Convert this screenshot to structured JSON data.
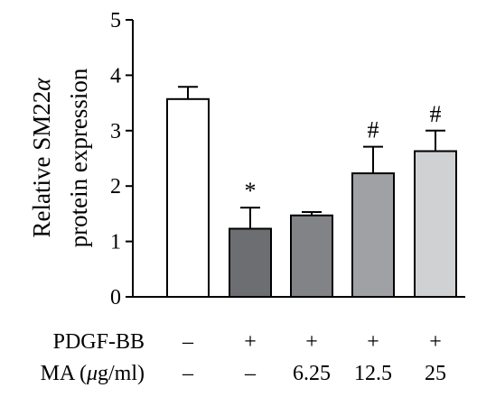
{
  "chart_data": {
    "type": "bar",
    "ylabel_line1_prefix": "Relative SM22",
    "ylabel_line1_greek": "α",
    "ylabel_line2": "protein expression",
    "ylim": [
      0,
      5
    ],
    "yticks": [
      "0",
      "1",
      "2",
      "3",
      "4",
      "5"
    ],
    "grid": false,
    "values": [
      3.57,
      1.23,
      1.47,
      2.23,
      2.63
    ],
    "errors": [
      0.22,
      0.38,
      0.06,
      0.48,
      0.37
    ],
    "colors": [
      "#ffffff",
      "#6d6e71",
      "#828386",
      "#a0a1a4",
      "#d0d1d2"
    ],
    "annotations": [
      "",
      "*",
      "",
      "#",
      "#"
    ],
    "conditions": [
      {
        "label": "PDGF-BB",
        "values": [
          "–",
          "+",
          "+",
          "+",
          "+"
        ]
      },
      {
        "label_prefix": "MA (",
        "label_greek": "μ",
        "label_suffix": "g/ml)",
        "values": [
          "–",
          "–",
          "6.25",
          "12.5",
          "25"
        ]
      }
    ]
  }
}
